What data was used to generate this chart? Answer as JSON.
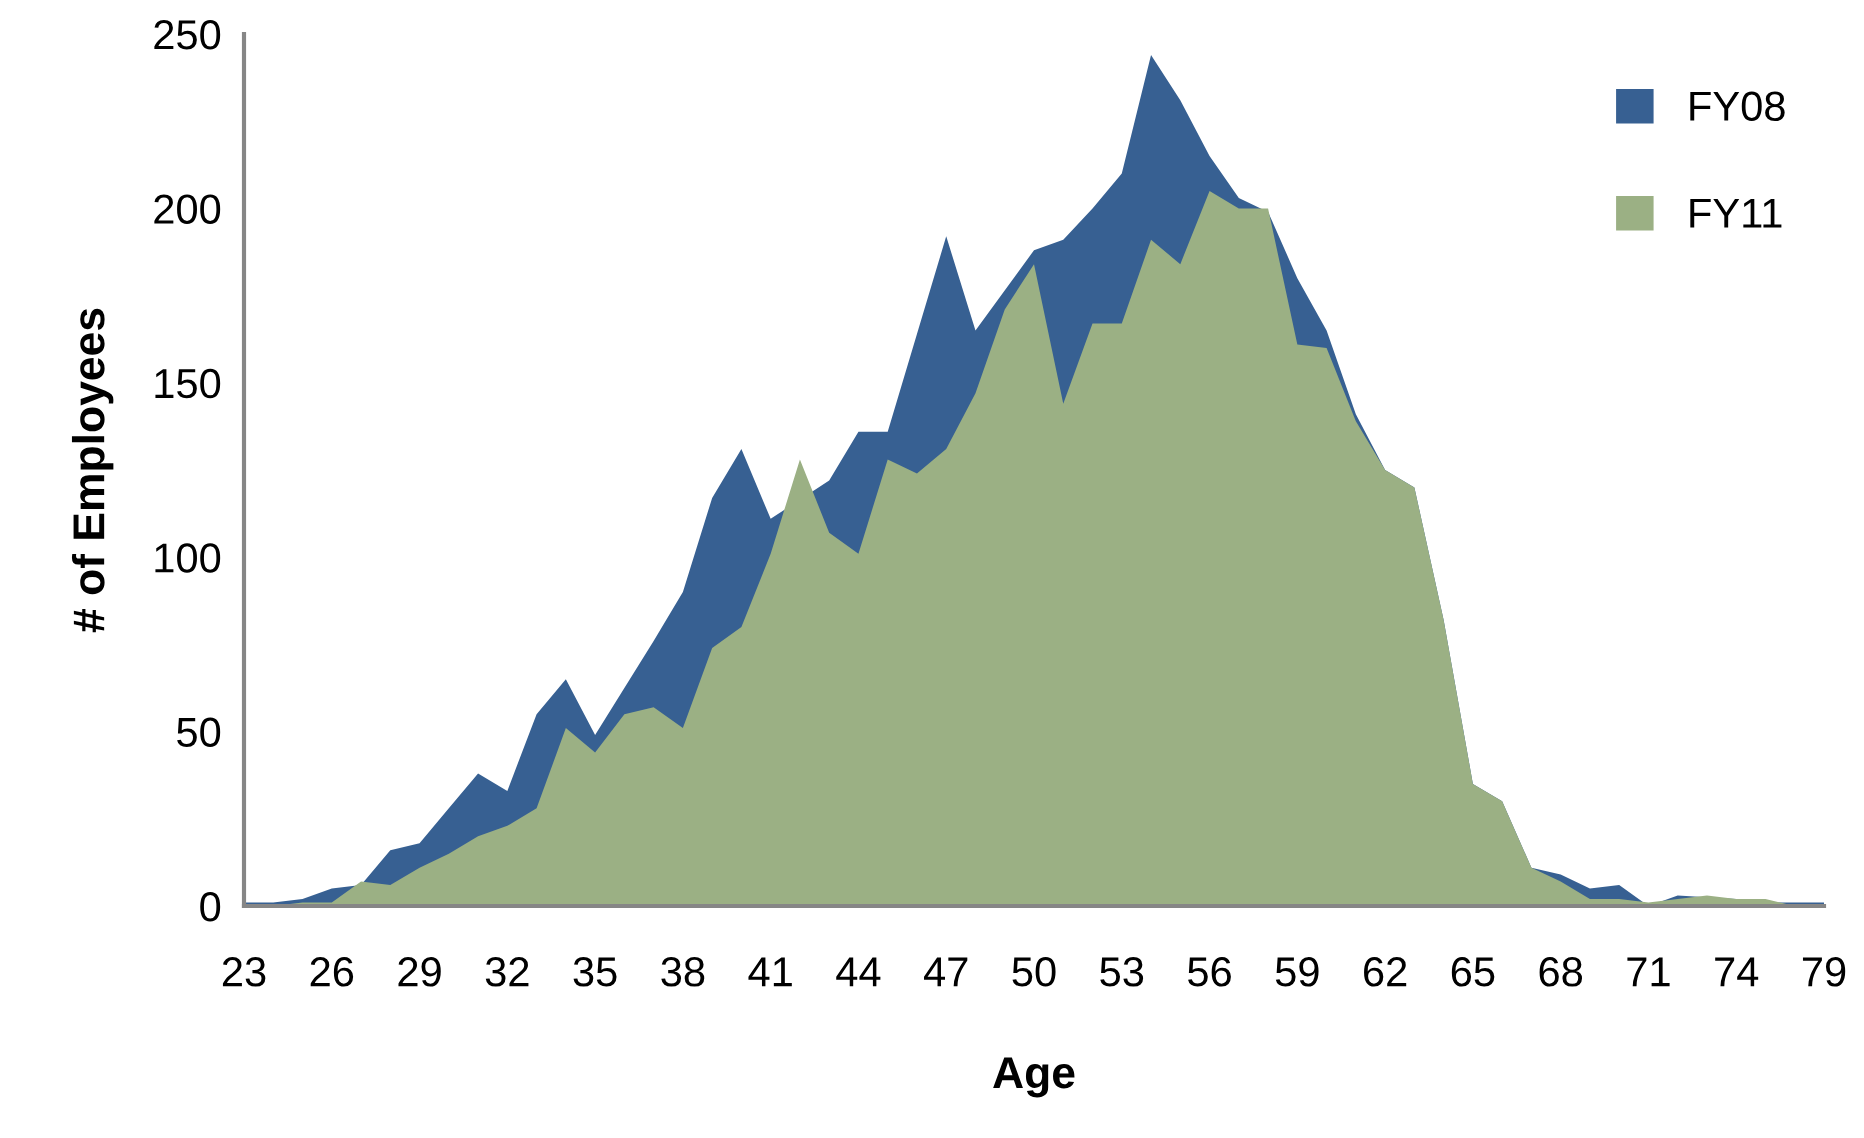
{
  "chart_data": {
    "type": "area",
    "xlabel": "Age",
    "ylabel": "# of Employees",
    "categories": [
      "23",
      null,
      null,
      "26",
      null,
      null,
      "29",
      null,
      null,
      "32",
      null,
      null,
      "35",
      null,
      null,
      "38",
      null,
      null,
      "41",
      null,
      null,
      "44",
      null,
      null,
      "47",
      null,
      null,
      "50",
      null,
      null,
      "53",
      null,
      null,
      "56",
      null,
      null,
      "59",
      null,
      null,
      "62",
      null,
      null,
      "65",
      null,
      null,
      "68",
      null,
      null,
      "71",
      null,
      null,
      "74",
      null,
      null,
      "79"
    ],
    "series": [
      {
        "name": "FY08",
        "color": "#376092",
        "values": [
          1,
          1,
          2,
          5,
          6,
          16,
          18,
          28,
          38,
          33,
          55,
          65,
          49,
          null,
          76,
          90,
          117,
          131,
          111,
          null,
          122,
          136,
          136,
          164,
          192,
          165,
          null,
          188,
          191,
          200,
          210,
          244,
          231,
          215,
          203,
          199,
          180,
          165,
          141,
          125,
          120,
          82,
          35,
          30,
          11,
          9,
          5,
          6,
          0,
          3,
          null,
          2,
          1,
          1,
          1
        ]
      },
      {
        "name": "FY11",
        "color": "#9bb084",
        "values": [
          0,
          0,
          1,
          1,
          7,
          6,
          11,
          15,
          20,
          23,
          28,
          51,
          44,
          55,
          57,
          51,
          74,
          80,
          101,
          128,
          107,
          101,
          128,
          124,
          131,
          147,
          171,
          184,
          144,
          167,
          167,
          191,
          184,
          205,
          200,
          200,
          161,
          160,
          139,
          125,
          120,
          82,
          35,
          30,
          11,
          7,
          2,
          2,
          1,
          2,
          3,
          2,
          2,
          0,
          0
        ]
      }
    ],
    "ylim": [
      0,
      250
    ],
    "yticks": [
      0,
      50,
      100,
      150,
      200,
      250
    ],
    "grid": false,
    "legend": "top right"
  }
}
